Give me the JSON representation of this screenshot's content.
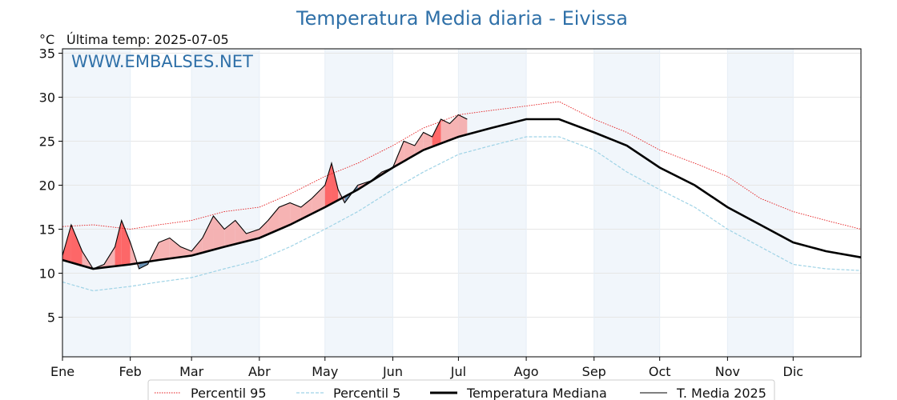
{
  "chart_data": {
    "type": "line",
    "title": "Temperatura Media diaria - Eivissa",
    "unit": "°C",
    "last_temp_label": "Última temp: 2025-07-05",
    "watermark": "WWW.EMBALSES.NET",
    "ylim": [
      0.5,
      35.5
    ],
    "y_ticks": [
      5,
      10,
      15,
      20,
      25,
      30,
      35
    ],
    "x_ticks": [
      {
        "label": "Ene",
        "day": 1
      },
      {
        "label": "Feb",
        "day": 32
      },
      {
        "label": "Mar",
        "day": 60
      },
      {
        "label": "Abr",
        "day": 91
      },
      {
        "label": "May",
        "day": 121
      },
      {
        "label": "Jun",
        "day": 152
      },
      {
        "label": "Jul",
        "day": 182
      },
      {
        "label": "Ago",
        "day": 213
      },
      {
        "label": "Sep",
        "day": 244
      },
      {
        "label": "Oct",
        "day": 274
      },
      {
        "label": "Nov",
        "day": 305
      },
      {
        "label": "Dic",
        "day": 335
      }
    ],
    "xlim": [
      1,
      366
    ],
    "grid": true,
    "legend_position": "bottom",
    "colors": {
      "p95": "#e41a1c",
      "p5": "#9fd3e6",
      "median": "#000000",
      "current": "#000000",
      "above_fill": "#f4a6a6",
      "above_p95_fill": "#ff4d4d",
      "below_fill": "#4f7fa8",
      "shade": "#f1f6fb"
    },
    "series": [
      {
        "name": "Percentil 95",
        "style": "dotted",
        "points": [
          [
            1,
            15.3
          ],
          [
            15,
            15.5
          ],
          [
            32,
            15.0
          ],
          [
            45,
            15.5
          ],
          [
            60,
            16.0
          ],
          [
            75,
            17.0
          ],
          [
            91,
            17.5
          ],
          [
            105,
            19.0
          ],
          [
            121,
            21.0
          ],
          [
            136,
            22.5
          ],
          [
            152,
            24.5
          ],
          [
            166,
            26.5
          ],
          [
            182,
            28.0
          ],
          [
            197,
            28.5
          ],
          [
            213,
            29.0
          ],
          [
            228,
            29.5
          ],
          [
            244,
            27.5
          ],
          [
            259,
            26.0
          ],
          [
            274,
            24.0
          ],
          [
            290,
            22.5
          ],
          [
            305,
            21.0
          ],
          [
            320,
            18.5
          ],
          [
            335,
            17.0
          ],
          [
            350,
            16.0
          ],
          [
            366,
            15.0
          ]
        ]
      },
      {
        "name": "Percentil 5",
        "style": "dashed",
        "points": [
          [
            1,
            9.0
          ],
          [
            15,
            8.0
          ],
          [
            32,
            8.5
          ],
          [
            45,
            9.0
          ],
          [
            60,
            9.5
          ],
          [
            75,
            10.5
          ],
          [
            91,
            11.5
          ],
          [
            105,
            13.0
          ],
          [
            121,
            15.0
          ],
          [
            136,
            17.0
          ],
          [
            152,
            19.5
          ],
          [
            166,
            21.5
          ],
          [
            182,
            23.5
          ],
          [
            197,
            24.5
          ],
          [
            213,
            25.5
          ],
          [
            228,
            25.5
          ],
          [
            244,
            24.0
          ],
          [
            259,
            21.5
          ],
          [
            274,
            19.5
          ],
          [
            290,
            17.5
          ],
          [
            305,
            15.0
          ],
          [
            320,
            13.0
          ],
          [
            335,
            11.0
          ],
          [
            350,
            10.5
          ],
          [
            366,
            10.3
          ]
        ]
      },
      {
        "name": "Temperatura Mediana",
        "style": "solid-thick",
        "points": [
          [
            1,
            11.5
          ],
          [
            15,
            10.5
          ],
          [
            32,
            11.0
          ],
          [
            45,
            11.5
          ],
          [
            60,
            12.0
          ],
          [
            75,
            13.0
          ],
          [
            91,
            14.0
          ],
          [
            105,
            15.5
          ],
          [
            121,
            17.5
          ],
          [
            136,
            19.5
          ],
          [
            152,
            22.0
          ],
          [
            166,
            24.0
          ],
          [
            182,
            25.5
          ],
          [
            197,
            26.5
          ],
          [
            213,
            27.5
          ],
          [
            228,
            27.5
          ],
          [
            244,
            26.0
          ],
          [
            259,
            24.5
          ],
          [
            274,
            22.0
          ],
          [
            290,
            20.0
          ],
          [
            305,
            17.5
          ],
          [
            320,
            15.5
          ],
          [
            335,
            13.5
          ],
          [
            350,
            12.5
          ],
          [
            366,
            11.8
          ]
        ]
      },
      {
        "name": "T. Media 2025",
        "style": "solid-thin",
        "points": [
          [
            1,
            12.0
          ],
          [
            5,
            15.5
          ],
          [
            10,
            12.5
          ],
          [
            15,
            10.5
          ],
          [
            20,
            11.0
          ],
          [
            25,
            13.0
          ],
          [
            28,
            16.0
          ],
          [
            32,
            13.5
          ],
          [
            36,
            10.5
          ],
          [
            40,
            11.0
          ],
          [
            45,
            13.5
          ],
          [
            50,
            14.0
          ],
          [
            55,
            13.0
          ],
          [
            60,
            12.5
          ],
          [
            65,
            14.0
          ],
          [
            70,
            16.5
          ],
          [
            75,
            15.0
          ],
          [
            80,
            16.0
          ],
          [
            85,
            14.5
          ],
          [
            91,
            15.0
          ],
          [
            95,
            16.0
          ],
          [
            100,
            17.5
          ],
          [
            105,
            18.0
          ],
          [
            110,
            17.5
          ],
          [
            115,
            18.5
          ],
          [
            121,
            20.0
          ],
          [
            124,
            22.5
          ],
          [
            127,
            19.5
          ],
          [
            130,
            18.0
          ],
          [
            136,
            20.0
          ],
          [
            142,
            20.5
          ],
          [
            147,
            21.5
          ],
          [
            152,
            22.0
          ],
          [
            157,
            25.0
          ],
          [
            162,
            24.5
          ],
          [
            166,
            26.0
          ],
          [
            170,
            25.5
          ],
          [
            174,
            27.5
          ],
          [
            178,
            27.0
          ],
          [
            182,
            28.0
          ],
          [
            186,
            27.5
          ]
        ]
      }
    ]
  }
}
